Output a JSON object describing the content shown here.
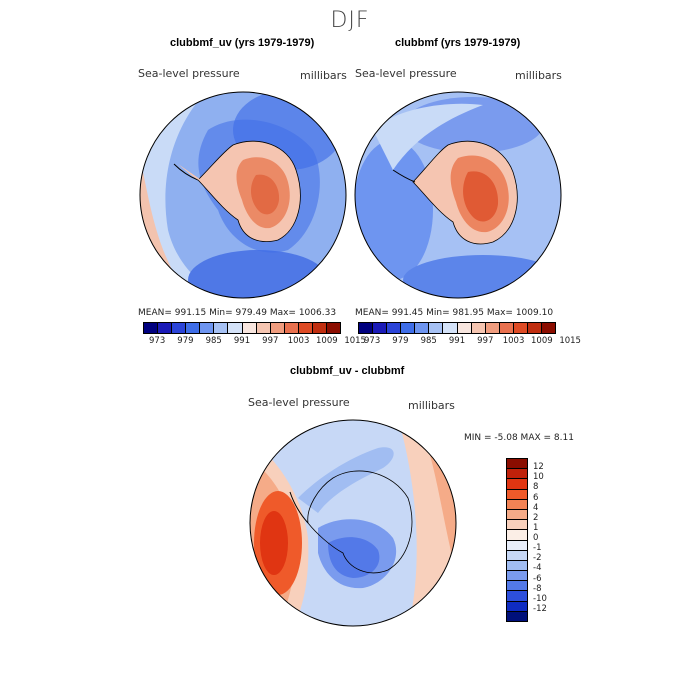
{
  "figure": {
    "title": "DJF",
    "panels": [
      {
        "title": "clubbmf_uv (yrs 1979-1979)",
        "left_label": "Sea-level pressure",
        "right_label": "millibars",
        "stats": "MEAN= 991.15   Min= 979.49   Max= 1006.33"
      },
      {
        "title": "clubbmf (yrs 1979-1979)",
        "left_label": "Sea-level pressure",
        "right_label": "millibars",
        "stats": "MEAN= 991.45   Min= 981.95   Max= 1009.10"
      }
    ],
    "shared_colorbar": {
      "ticks": [
        "973",
        "979",
        "985",
        "991",
        "997",
        "1003",
        "1009",
        "1015"
      ],
      "colors": [
        "#00007f",
        "#1b1bb8",
        "#2b44d8",
        "#3f6ee8",
        "#6e95f0",
        "#a6c1f4",
        "#d4e2f8",
        "#f8e6df",
        "#f5c5b1",
        "#f09d7f",
        "#e9714f",
        "#de4b25",
        "#c02e10",
        "#8b0d00"
      ]
    },
    "diff_panel": {
      "title": "clubbmf_uv - clubbmf",
      "left_label": "Sea-level pressure",
      "right_label": "millibars",
      "stats": "MIN =   -5.08 MAX =    8.11",
      "colorbar_ticks": [
        "12",
        "10",
        "8",
        "6",
        "4",
        "2",
        "1",
        "0",
        "-1",
        "-2",
        "-4",
        "-6",
        "-8",
        "-10",
        "-12"
      ],
      "colorbar_colors": [
        "#8b0d00",
        "#c0210a",
        "#e03512",
        "#ef5a2a",
        "#f28355",
        "#f5ab88",
        "#f8d0bc",
        "#fbeee6",
        "#e8eefa",
        "#c7d8f6",
        "#a1bdf2",
        "#7a9bee",
        "#5379e8",
        "#2d4fdc",
        "#0f2cc2",
        "#00107a"
      ]
    }
  },
  "chart_data": {
    "type": "map",
    "title": "DJF",
    "variable": "Sea-level pressure",
    "units": "millibars",
    "panels": [
      {
        "name": "clubbmf_uv (yrs 1979-1979)",
        "mean": 991.15,
        "min": 979.49,
        "max": 1006.33
      },
      {
        "name": "clubbmf (yrs 1979-1979)",
        "mean": 991.45,
        "min": 981.95,
        "max": 1009.1
      },
      {
        "name": "clubbmf_uv - clubbmf",
        "min": -5.08,
        "max": 8.11
      }
    ],
    "levels_main": [
      973,
      979,
      985,
      991,
      997,
      1003,
      1009,
      1015
    ],
    "levels_diff": [
      -12,
      -10,
      -8,
      -6,
      -4,
      -2,
      -1,
      0,
      1,
      2,
      4,
      6,
      8,
      10,
      12
    ]
  }
}
